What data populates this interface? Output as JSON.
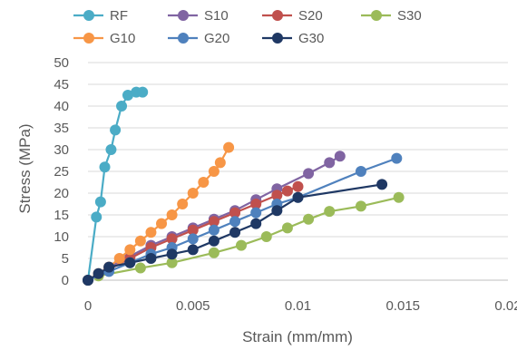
{
  "chart_data": {
    "type": "scatter",
    "title": "",
    "xlabel": "Strain (mm/mm)",
    "ylabel": "Stress (MPa)",
    "xlim": [
      0,
      0.02
    ],
    "ylim": [
      0,
      50
    ],
    "x_ticks": [
      "0",
      "0.005",
      "0.01",
      "0.015",
      "0.02"
    ],
    "y_ticks": [
      "0",
      "5",
      "10",
      "15",
      "20",
      "25",
      "30",
      "35",
      "40",
      "45",
      "50"
    ],
    "grid": "horizontal",
    "legend_position": "top",
    "series": [
      {
        "name": "RF",
        "color": "#4bacc6",
        "x": [
          0,
          0.0004,
          0.0006,
          0.0008,
          0.0011,
          0.0013,
          0.0016,
          0.0019,
          0.0023,
          0.0026
        ],
        "y": [
          0,
          14.5,
          18,
          26,
          30,
          34.5,
          40,
          42.5,
          43.2,
          43.2
        ]
      },
      {
        "name": "S10",
        "color": "#8064a2",
        "x": [
          0,
          0.001,
          0.002,
          0.003,
          0.004,
          0.005,
          0.006,
          0.007,
          0.008,
          0.009,
          0.0105,
          0.0115,
          0.012
        ],
        "y": [
          0,
          3,
          5.5,
          8,
          10,
          12,
          14,
          16,
          18.5,
          21,
          24.5,
          27,
          28.5
        ]
      },
      {
        "name": "S20",
        "color": "#c0504d",
        "x": [
          0,
          0.001,
          0.002,
          0.003,
          0.004,
          0.005,
          0.006,
          0.007,
          0.008,
          0.009,
          0.0095,
          0.01
        ],
        "y": [
          0,
          2.5,
          5,
          7.5,
          9.5,
          11.5,
          13.5,
          15.5,
          17.5,
          19.5,
          20.5,
          21.5
        ]
      },
      {
        "name": "S30",
        "color": "#9bbb59",
        "x": [
          0,
          0.0005,
          0.0025,
          0.004,
          0.006,
          0.0073,
          0.0085,
          0.0095,
          0.0105,
          0.0115,
          0.013,
          0.0148
        ],
        "y": [
          0,
          1,
          2.8,
          4,
          6.3,
          8,
          10,
          12,
          14,
          15.8,
          17,
          19
        ]
      },
      {
        "name": "G10",
        "color": "#f79646",
        "x": [
          0,
          0.0005,
          0.001,
          0.0015,
          0.002,
          0.0025,
          0.003,
          0.0035,
          0.004,
          0.0045,
          0.005,
          0.0055,
          0.006,
          0.0063,
          0.0067
        ],
        "y": [
          0,
          1.5,
          3,
          5,
          7,
          9,
          11,
          13,
          15,
          17.5,
          20,
          22.5,
          25,
          27,
          30.5
        ]
      },
      {
        "name": "G20",
        "color": "#4f81bd",
        "x": [
          0,
          0.001,
          0.002,
          0.003,
          0.004,
          0.005,
          0.006,
          0.007,
          0.008,
          0.009,
          0.01,
          0.013,
          0.0147
        ],
        "y": [
          0,
          2,
          4,
          6,
          7.5,
          9.5,
          11.5,
          13.5,
          15.5,
          17.5,
          19,
          25,
          28
        ]
      },
      {
        "name": "G30",
        "color": "#1f3864",
        "x": [
          0,
          0.0005,
          0.001,
          0.002,
          0.003,
          0.004,
          0.005,
          0.006,
          0.007,
          0.008,
          0.009,
          0.01,
          0.014
        ],
        "y": [
          0,
          1.5,
          3,
          4,
          5,
          6,
          7,
          9,
          11,
          13,
          16,
          19,
          22
        ]
      }
    ]
  }
}
